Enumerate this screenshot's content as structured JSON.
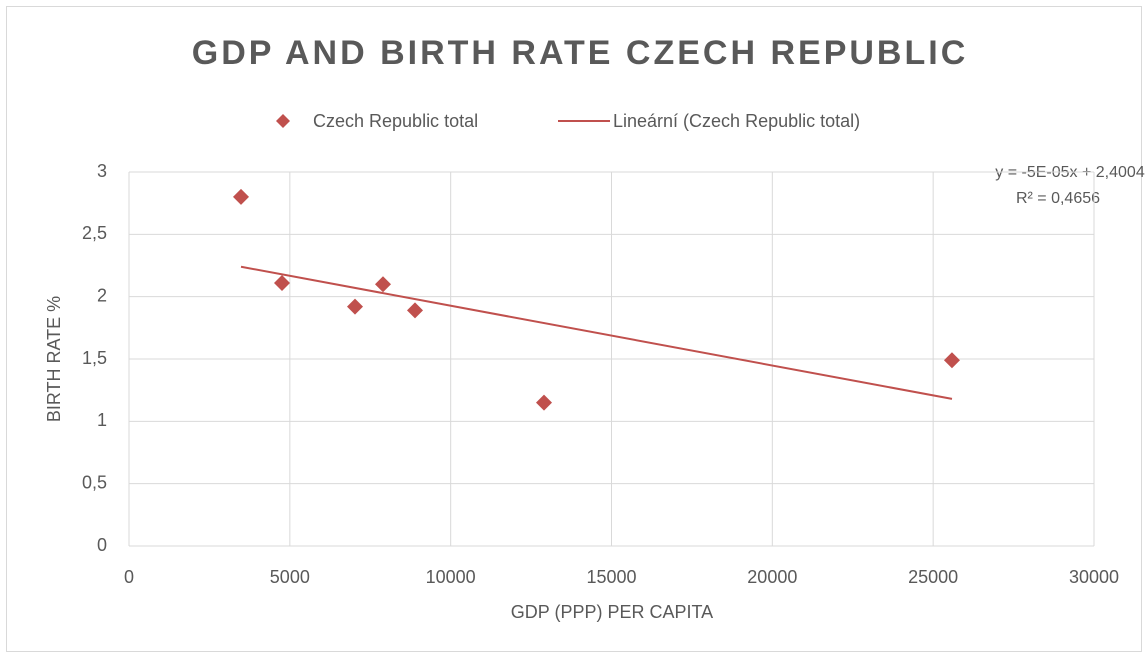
{
  "chart_data": {
    "type": "scatter",
    "title": "GDP AND BIRTH RATE CZECH REPUBLIC",
    "xlabel": "GDP (PPP) PER CAPITA",
    "ylabel": "BIRTH RATE %",
    "series": [
      {
        "name": "Czech Republic total",
        "color": "#c0504d",
        "x": [
          3482,
          4756,
          7026,
          7896,
          8891,
          12902,
          25585
        ],
        "values": [
          2.8,
          2.11,
          1.92,
          2.1,
          1.89,
          1.15,
          1.49
        ]
      }
    ],
    "trendline": {
      "name": "Lineární (Czech Republic total)",
      "color": "#c0504d",
      "x": [
        3482,
        25585
      ],
      "values": [
        2.24,
        1.18
      ],
      "equation": "y = -5E-05x + 2,4004",
      "r2": "R² = 0,4656"
    },
    "xlim": [
      0,
      30000
    ],
    "xticks": [
      0,
      5000,
      10000,
      15000,
      20000,
      25000,
      30000
    ],
    "ylim": [
      0,
      3
    ],
    "yticks": [
      0,
      {
        "value": 0.5,
        "label": "0,5"
      },
      1,
      {
        "value": 1.5,
        "label": "1,5"
      },
      2,
      {
        "value": 2.5,
        "label": "2,5"
      },
      3
    ],
    "grid": true,
    "legend": "top"
  }
}
